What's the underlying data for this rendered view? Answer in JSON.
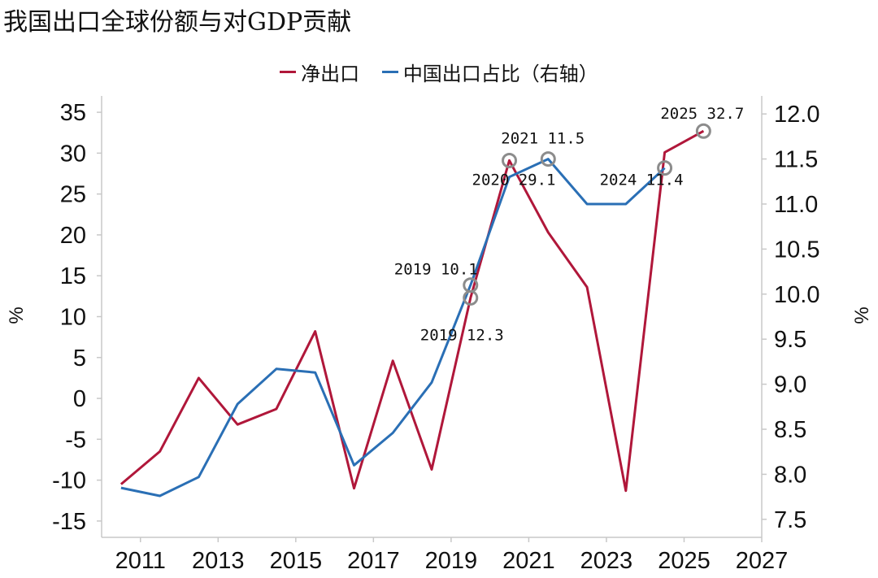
{
  "chart_data": {
    "type": "line",
    "title": "我国出口全球份额与对GDP贡献",
    "ylabel_left": "%",
    "ylabel_right": "%",
    "xlim": [
      2010,
      2027
    ],
    "x_ticks": [
      2011,
      2013,
      2015,
      2017,
      2019,
      2021,
      2023,
      2025,
      2027
    ],
    "ylim_left": [
      -17,
      37
    ],
    "y_ticks_left": [
      -15,
      -10,
      -5,
      0,
      5,
      10,
      15,
      20,
      25,
      30,
      35
    ],
    "ylim_right": [
      7.3,
      12.2
    ],
    "y_ticks_right": [
      7.5,
      8.0,
      8.5,
      9.0,
      9.5,
      10.0,
      10.5,
      11.0,
      11.5,
      12.0
    ],
    "grid": false,
    "legend_position": "top-center",
    "series": [
      {
        "name": "净出口",
        "axis": "left",
        "color": "#b0173a",
        "x": [
          2010.5,
          2011.5,
          2012.5,
          2013.5,
          2014.5,
          2015.5,
          2016.5,
          2017.5,
          2018.5,
          2019.5,
          2020.5,
          2021.5,
          2022.5,
          2023.5,
          2024.5,
          2025.5
        ],
        "values": [
          -10.5,
          -6.5,
          2.5,
          -3.2,
          -1.3,
          8.2,
          -11.0,
          4.6,
          -8.7,
          12.3,
          29.1,
          20.3,
          13.6,
          -11.3,
          30.1,
          32.7
        ]
      },
      {
        "name": "中国出口占比（右轴）",
        "axis": "right",
        "color": "#2a6fb5",
        "x": [
          2010.5,
          2011.5,
          2012.5,
          2013.5,
          2014.5,
          2015.5,
          2016.5,
          2017.5,
          2018.5,
          2019.5,
          2020.5,
          2021.5,
          2022.5,
          2023.5,
          2024.5
        ],
        "values": [
          7.85,
          7.76,
          7.97,
          8.78,
          9.17,
          9.13,
          8.1,
          8.46,
          9.02,
          10.1,
          11.3,
          11.5,
          11.0,
          11.0,
          11.4
        ]
      }
    ],
    "annotations": [
      {
        "series": 0,
        "x": 2019.5,
        "value": 12.3,
        "text": "2019 12.3"
      },
      {
        "series": 1,
        "x": 2019.5,
        "value": 10.1,
        "text": "2019 10.1"
      },
      {
        "series": 0,
        "x": 2020.5,
        "value": 29.1,
        "text": "2020 29.1"
      },
      {
        "series": 1,
        "x": 2021.5,
        "value": 11.5,
        "text": "2021 11.5"
      },
      {
        "series": 1,
        "x": 2024.5,
        "value": 11.4,
        "text": "2024 11.4"
      },
      {
        "series": 0,
        "x": 2025.5,
        "value": 32.7,
        "text": "2025 32.7"
      }
    ],
    "marker_color": "#8c8c8c"
  }
}
